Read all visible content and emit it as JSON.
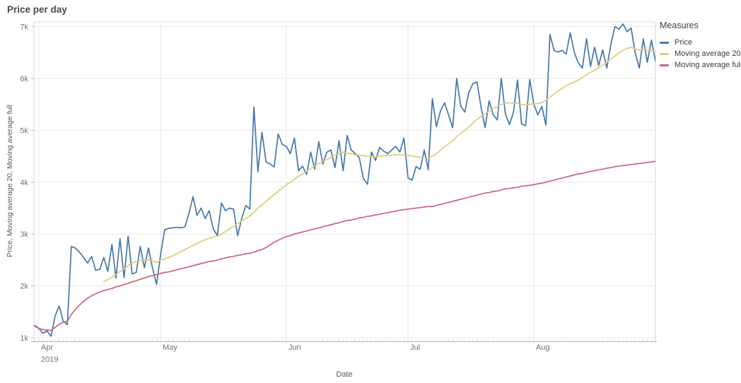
{
  "header": {
    "title": "Price per day"
  },
  "legend": {
    "title": "Measures",
    "items": [
      {
        "label": "Price",
        "color": "#4477aa"
      },
      {
        "label": "Moving average 20",
        "color": "#ddcc77"
      },
      {
        "label": "Moving average full",
        "color": "#cc6677"
      }
    ]
  },
  "colors": {
    "price": "#4477aa",
    "moving_average_20": "#ddcc77",
    "moving_average_full": "#cc6677",
    "gridline": "#e8e8e8",
    "plot_border": "#d9d9d9",
    "axis_line": "#b3b3b3",
    "tick_text": "#737373",
    "axis_title_text": "#595959"
  },
  "chart_data": {
    "type": "line",
    "title": "Price per day",
    "xlabel": "Date",
    "ylabel": "Price, Moving average 20, Moving average full",
    "x_unit": "day",
    "x_range": [
      "2019-03-31",
      "2019-08-31"
    ],
    "x_tick_labels": [
      "Apr",
      "May",
      "Jun",
      "Jul",
      "Aug"
    ],
    "x_tick_year": "2019",
    "x_month_start_indices": [
      1,
      31,
      62,
      92,
      123
    ],
    "y_tick_labels": [
      "1k",
      "2k",
      "3k",
      "4k",
      "5k",
      "6k",
      "7k"
    ],
    "y_tick_values_k": [
      1,
      2,
      3,
      4,
      5,
      6,
      7
    ],
    "ylim_k": [
      1,
      7
    ],
    "value_unit_note": "series values are in thousands (k)",
    "grid": true,
    "legend_position": "right",
    "series": [
      {
        "name": "Price",
        "color": "#4477aa",
        "values": [
          1.24,
          1.18,
          1.09,
          1.13,
          1.03,
          1.42,
          1.61,
          1.32,
          1.25,
          2.76,
          2.73,
          2.65,
          2.55,
          2.44,
          2.57,
          2.3,
          2.32,
          2.55,
          2.28,
          2.8,
          2.15,
          2.91,
          2.16,
          2.96,
          2.23,
          2.26,
          2.76,
          2.35,
          2.73,
          2.35,
          2.03,
          2.6,
          3.08,
          3.11,
          3.12,
          3.13,
          3.12,
          3.14,
          3.4,
          3.72,
          3.36,
          3.5,
          3.3,
          3.45,
          3.1,
          2.97,
          3.6,
          3.45,
          3.5,
          3.48,
          2.97,
          3.3,
          3.55,
          3.48,
          5.45,
          4.2,
          4.96,
          4.39,
          4.35,
          4.29,
          4.93,
          4.73,
          4.69,
          4.55,
          4.85,
          4.22,
          4.31,
          4.15,
          4.58,
          4.25,
          4.78,
          4.35,
          4.58,
          4.62,
          4.28,
          4.8,
          4.22,
          4.9,
          4.62,
          4.55,
          4.47,
          4.07,
          3.96,
          4.58,
          4.42,
          4.67,
          4.6,
          4.55,
          4.62,
          4.69,
          4.58,
          4.85,
          4.08,
          4.04,
          4.3,
          4.25,
          4.62,
          4.24,
          5.61,
          5.07,
          5.37,
          5.53,
          5.3,
          5.05,
          6.0,
          5.47,
          5.35,
          5.73,
          5.9,
          5.93,
          5.45,
          5.05,
          5.57,
          5.3,
          5.2,
          6.0,
          5.32,
          5.11,
          5.35,
          5.97,
          5.12,
          5.09,
          5.98,
          5.51,
          5.3,
          5.46,
          5.1,
          6.85,
          6.54,
          6.51,
          6.54,
          6.47,
          6.88,
          6.5,
          6.3,
          6.2,
          6.77,
          6.23,
          6.6,
          6.25,
          6.55,
          6.2,
          6.65,
          7.0,
          6.95,
          7.05,
          6.9,
          6.97,
          6.5,
          6.2,
          6.76,
          6.31,
          6.74,
          6.33
        ]
      },
      {
        "name": "Moving average 20",
        "color": "#ddcc77",
        "values": [
          null,
          null,
          null,
          null,
          null,
          null,
          null,
          null,
          null,
          null,
          null,
          null,
          null,
          null,
          null,
          null,
          null,
          2.08,
          2.12,
          2.17,
          2.22,
          2.28,
          2.33,
          2.39,
          2.44,
          2.47,
          2.49,
          2.5,
          2.5,
          2.48,
          2.45,
          2.5,
          2.52,
          2.55,
          2.58,
          2.62,
          2.66,
          2.7,
          2.74,
          2.78,
          2.82,
          2.86,
          2.89,
          2.92,
          2.94,
          2.96,
          3.0,
          3.05,
          3.1,
          3.15,
          3.2,
          3.25,
          3.3,
          3.35,
          3.42,
          3.5,
          3.56,
          3.63,
          3.7,
          3.76,
          3.83,
          3.89,
          3.95,
          4.0,
          4.06,
          4.11,
          4.16,
          4.21,
          4.26,
          4.31,
          4.36,
          4.4,
          4.44,
          4.48,
          4.52,
          4.55,
          4.58,
          4.56,
          4.55,
          4.53,
          4.52,
          4.51,
          4.5,
          4.49,
          4.49,
          4.5,
          4.51,
          4.52,
          4.52,
          4.53,
          4.53,
          4.52,
          4.52,
          4.5,
          4.49,
          4.48,
          4.47,
          4.47,
          4.5,
          4.55,
          4.61,
          4.68,
          4.74,
          4.8,
          4.88,
          4.94,
          5.0,
          5.07,
          5.14,
          5.21,
          5.27,
          5.32,
          5.37,
          5.42,
          5.46,
          5.5,
          5.52,
          5.53,
          5.52,
          5.52,
          5.5,
          5.49,
          5.5,
          5.51,
          5.52,
          5.53,
          5.58,
          5.64,
          5.7,
          5.76,
          5.81,
          5.86,
          5.9,
          5.93,
          5.97,
          6.02,
          6.07,
          6.12,
          6.16,
          6.21,
          6.26,
          6.31,
          6.37,
          6.43,
          6.49,
          6.54,
          6.58,
          6.6,
          6.57,
          6.55,
          6.56,
          6.55,
          6.53,
          6.52
        ]
      },
      {
        "name": "Moving average full",
        "color": "#cc6677",
        "values": [
          1.22,
          1.18,
          1.16,
          1.15,
          1.14,
          1.2,
          1.26,
          1.3,
          1.32,
          1.45,
          1.55,
          1.63,
          1.7,
          1.76,
          1.81,
          1.85,
          1.88,
          1.91,
          1.93,
          1.95,
          1.98,
          2.0,
          2.03,
          2.05,
          2.08,
          2.1,
          2.13,
          2.15,
          2.18,
          2.2,
          2.22,
          2.24,
          2.26,
          2.27,
          2.29,
          2.31,
          2.33,
          2.35,
          2.37,
          2.39,
          2.41,
          2.43,
          2.45,
          2.47,
          2.48,
          2.5,
          2.52,
          2.54,
          2.56,
          2.57,
          2.59,
          2.6,
          2.62,
          2.63,
          2.65,
          2.68,
          2.7,
          2.74,
          2.79,
          2.84,
          2.88,
          2.92,
          2.95,
          2.97,
          3.0,
          3.02,
          3.04,
          3.06,
          3.08,
          3.1,
          3.12,
          3.14,
          3.16,
          3.18,
          3.2,
          3.22,
          3.24,
          3.26,
          3.27,
          3.29,
          3.31,
          3.32,
          3.34,
          3.35,
          3.37,
          3.38,
          3.4,
          3.41,
          3.43,
          3.44,
          3.46,
          3.47,
          3.48,
          3.49,
          3.5,
          3.51,
          3.52,
          3.53,
          3.53,
          3.55,
          3.57,
          3.59,
          3.61,
          3.63,
          3.65,
          3.67,
          3.69,
          3.71,
          3.73,
          3.75,
          3.77,
          3.79,
          3.8,
          3.82,
          3.83,
          3.85,
          3.87,
          3.88,
          3.89,
          3.9,
          3.92,
          3.93,
          3.94,
          3.95,
          3.97,
          3.98,
          4.0,
          4.02,
          4.04,
          4.06,
          4.08,
          4.1,
          4.12,
          4.14,
          4.16,
          4.17,
          4.19,
          4.21,
          4.22,
          4.24,
          4.25,
          4.27,
          4.28,
          4.3,
          4.31,
          4.32,
          4.33,
          4.34,
          4.35,
          4.36,
          4.37,
          4.38,
          4.39,
          4.4
        ]
      }
    ]
  }
}
